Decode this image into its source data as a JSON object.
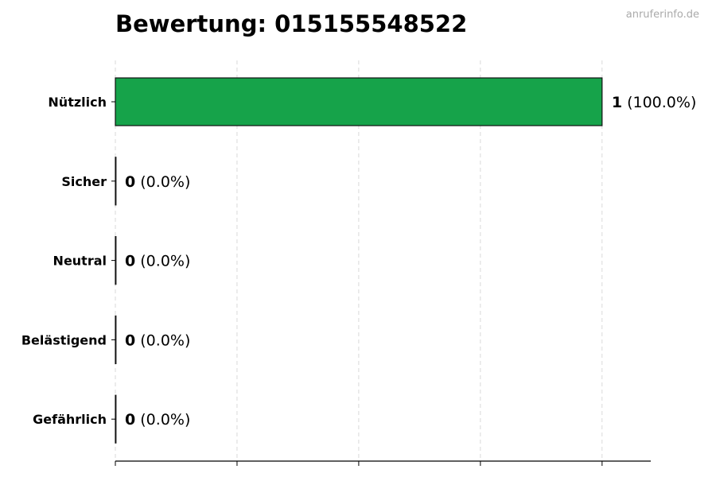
{
  "chart_data": {
    "type": "bar",
    "orientation": "horizontal",
    "title": "Bewertung: 015155548522",
    "watermark": "anruferinfo.de",
    "categories": [
      "Nützlich",
      "Sicher",
      "Neutral",
      "Belästigend",
      "Gefährlich"
    ],
    "values": [
      1,
      0,
      0,
      0,
      0
    ],
    "value_labels": [
      "1",
      "0",
      "0",
      "0",
      "0"
    ],
    "percent_labels": [
      "(100.0%)",
      "(0.0%)",
      "(0.0%)",
      "(0.0%)",
      "(0.0%)"
    ],
    "bar_color": "#16a34a",
    "xlim": [
      0,
      1.1
    ],
    "xticks": [
      0,
      0.25,
      0.5,
      0.75,
      1.0
    ],
    "xtick_labels_visible": false,
    "grid": "x-dashed",
    "xlabel": "",
    "ylabel": ""
  }
}
